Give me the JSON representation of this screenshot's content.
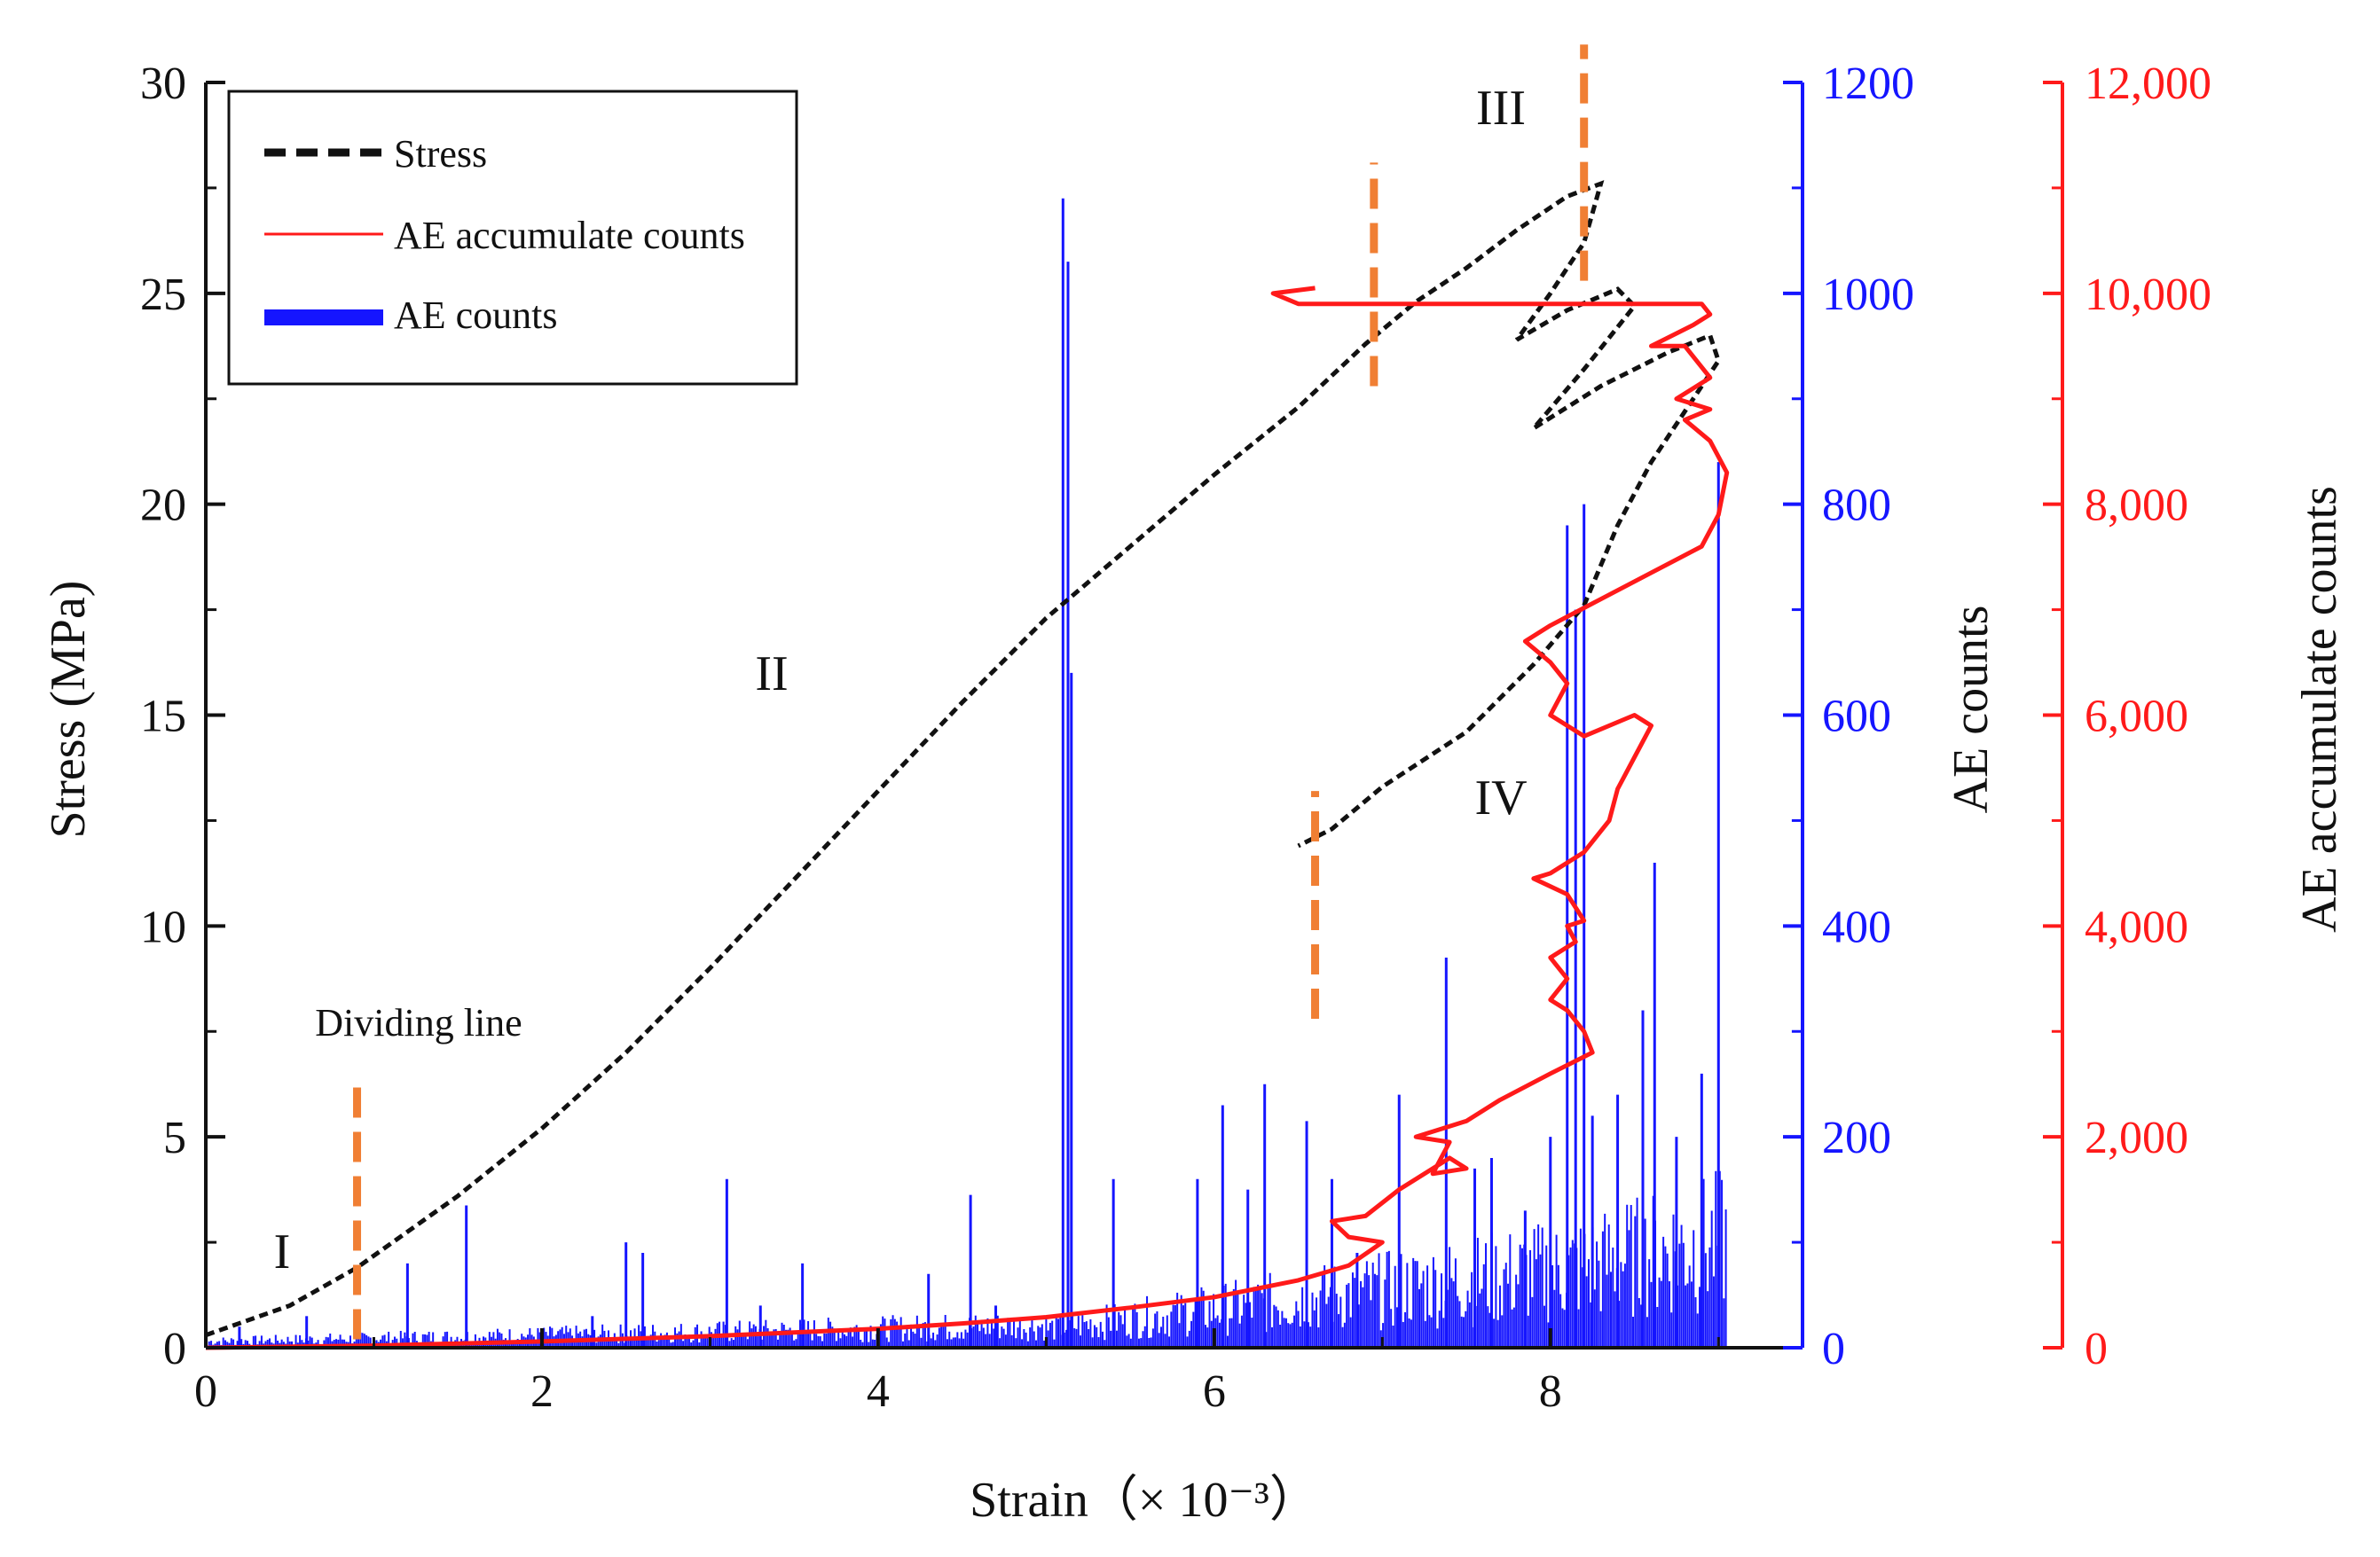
{
  "chart_data": {
    "type": "line",
    "title": "",
    "xlabel": "Strain（× 10⁻³）",
    "xlim": [
      0,
      9.5
    ],
    "xticks": [
      "0",
      "2",
      "4",
      "6",
      "8"
    ],
    "axes": {
      "stress": {
        "label": "Stress (MPa)",
        "ylim": [
          0,
          30
        ],
        "ticks": [
          "0",
          "5",
          "10",
          "15",
          "20",
          "25",
          "30"
        ],
        "color": "#111111"
      },
      "ae_counts": {
        "label": "AE counts",
        "ylim": [
          0,
          1200
        ],
        "ticks": [
          "0",
          "200",
          "400",
          "600",
          "800",
          "1000",
          "1200"
        ],
        "color": "#1515ff"
      },
      "ae_accumulate": {
        "label": "AE accumulate counts",
        "ylim": [
          0,
          12000
        ],
        "ticks": [
          "0",
          "2,000",
          "4,000",
          "6,000",
          "8,000",
          "10,000",
          "12,000"
        ],
        "color": "#ff1a1a"
      }
    },
    "legend": {
      "position": "top-left",
      "entries": [
        {
          "label": "Stress",
          "color": "#111111",
          "style": "dashed"
        },
        {
          "label": "AE accumulate counts",
          "color": "#ff1a1a",
          "style": "solid"
        },
        {
          "label": "AE counts",
          "color": "#1515ff",
          "style": "bar"
        }
      ]
    },
    "series": [
      {
        "name": "Stress",
        "axis": "stress",
        "color": "#111111",
        "points": [
          [
            0,
            0.3
          ],
          [
            0.5,
            1.0
          ],
          [
            0.9,
            1.9
          ],
          [
            1.5,
            3.6
          ],
          [
            2.0,
            5.2
          ],
          [
            2.5,
            7.0
          ],
          [
            3.0,
            9.0
          ],
          [
            3.5,
            11.1
          ],
          [
            4.0,
            13.2
          ],
          [
            4.5,
            15.3
          ],
          [
            5.0,
            17.3
          ],
          [
            5.5,
            19.0
          ],
          [
            6.0,
            20.7
          ],
          [
            6.5,
            22.3
          ],
          [
            6.9,
            23.8
          ],
          [
            7.2,
            24.8
          ],
          [
            7.5,
            25.6
          ],
          [
            7.8,
            26.5
          ],
          [
            8.1,
            27.3
          ],
          [
            8.3,
            27.6
          ],
          [
            8.2,
            26.2
          ],
          [
            8.0,
            25.0
          ],
          [
            7.8,
            23.9
          ],
          [
            8.1,
            24.6
          ],
          [
            8.4,
            25.1
          ],
          [
            8.5,
            24.7
          ],
          [
            8.2,
            23.2
          ],
          [
            7.9,
            21.8
          ],
          [
            8.3,
            22.8
          ],
          [
            8.7,
            23.6
          ],
          [
            8.95,
            24.0
          ],
          [
            9.0,
            23.4
          ],
          [
            8.8,
            22.2
          ],
          [
            8.6,
            21.0
          ],
          [
            8.4,
            19.5
          ],
          [
            8.2,
            17.6
          ],
          [
            7.9,
            16.2
          ],
          [
            7.5,
            14.6
          ],
          [
            7.0,
            13.3
          ],
          [
            6.7,
            12.3
          ],
          [
            6.5,
            11.9
          ]
        ]
      },
      {
        "name": "AE accumulate counts",
        "axis": "ae_accumulate",
        "color": "#ff1a1a",
        "points": [
          [
            0,
            0
          ],
          [
            1.0,
            20
          ],
          [
            2.0,
            60
          ],
          [
            3.0,
            110
          ],
          [
            4.0,
            180
          ],
          [
            4.5,
            230
          ],
          [
            5.0,
            290
          ],
          [
            5.5,
            380
          ],
          [
            6.0,
            480
          ],
          [
            6.5,
            640
          ],
          [
            6.8,
            780
          ],
          [
            7.0,
            1000
          ],
          [
            6.8,
            1050
          ],
          [
            6.7,
            1200
          ],
          [
            6.9,
            1250
          ],
          [
            7.1,
            1500
          ],
          [
            7.3,
            1700
          ],
          [
            7.4,
            1800
          ],
          [
            7.5,
            1700
          ],
          [
            7.3,
            1650
          ],
          [
            7.4,
            1950
          ],
          [
            7.2,
            2000
          ],
          [
            7.5,
            2150
          ],
          [
            7.7,
            2350
          ],
          [
            8.0,
            2600
          ],
          [
            8.25,
            2800
          ],
          [
            8.2,
            3000
          ],
          [
            8.1,
            3200
          ],
          [
            8.0,
            3300
          ],
          [
            8.1,
            3500
          ],
          [
            8.0,
            3700
          ],
          [
            8.15,
            3850
          ],
          [
            8.1,
            4000
          ],
          [
            8.2,
            4050
          ],
          [
            8.1,
            4300
          ],
          [
            7.9,
            4450
          ],
          [
            8.0,
            4500
          ],
          [
            8.2,
            4700
          ],
          [
            8.35,
            5000
          ],
          [
            8.4,
            5300
          ],
          [
            8.5,
            5600
          ],
          [
            8.6,
            5900
          ],
          [
            8.5,
            6000
          ],
          [
            8.2,
            5800
          ],
          [
            8.0,
            6000
          ],
          [
            8.1,
            6300
          ],
          [
            8.0,
            6500
          ],
          [
            7.85,
            6700
          ],
          [
            8.0,
            6850
          ],
          [
            8.3,
            7100
          ],
          [
            8.6,
            7350
          ],
          [
            8.9,
            7600
          ],
          [
            9.0,
            7900
          ],
          [
            9.05,
            8300
          ],
          [
            8.95,
            8600
          ],
          [
            8.8,
            8800
          ],
          [
            8.95,
            8900
          ],
          [
            8.75,
            9000
          ],
          [
            8.95,
            9200
          ],
          [
            8.8,
            9500
          ],
          [
            8.6,
            9500
          ],
          [
            8.85,
            9700
          ],
          [
            8.95,
            9800
          ],
          [
            8.9,
            9900
          ],
          [
            6.5,
            9900
          ],
          [
            6.35,
            10000
          ],
          [
            6.6,
            10050
          ]
        ]
      },
      {
        "name": "AE counts",
        "axis": "ae_counts",
        "color": "#1515ff",
        "type": "bar",
        "spikes": [
          [
            0.2,
            20
          ],
          [
            0.6,
            30
          ],
          [
            1.2,
            80
          ],
          [
            1.55,
            135
          ],
          [
            2.3,
            30
          ],
          [
            2.5,
            100
          ],
          [
            2.6,
            90
          ],
          [
            3.1,
            160
          ],
          [
            3.3,
            40
          ],
          [
            3.55,
            80
          ],
          [
            4.3,
            70
          ],
          [
            4.55,
            145
          ],
          [
            4.7,
            40
          ],
          [
            5.1,
            1090
          ],
          [
            5.13,
            1030
          ],
          [
            5.15,
            640
          ],
          [
            5.4,
            160
          ],
          [
            5.9,
            160
          ],
          [
            6.05,
            230
          ],
          [
            6.2,
            150
          ],
          [
            6.3,
            250
          ],
          [
            6.55,
            215
          ],
          [
            6.7,
            160
          ],
          [
            6.85,
            90
          ],
          [
            7.1,
            240
          ],
          [
            7.38,
            370
          ],
          [
            7.55,
            170
          ],
          [
            7.65,
            180
          ],
          [
            7.85,
            130
          ],
          [
            8.0,
            200
          ],
          [
            8.1,
            780
          ],
          [
            8.15,
            700
          ],
          [
            8.2,
            800
          ],
          [
            8.25,
            220
          ],
          [
            8.4,
            240
          ],
          [
            8.55,
            320
          ],
          [
            8.62,
            460
          ],
          [
            8.75,
            200
          ],
          [
            8.9,
            260
          ],
          [
            9.0,
            840
          ]
        ]
      }
    ],
    "vlines": [
      {
        "x": 0.9,
        "y0": 0.2,
        "y1": 6.4
      },
      {
        "x": 6.6,
        "y0": 7.8,
        "y1": 13.2
      },
      {
        "x": 6.95,
        "y0": 22.8,
        "y1": 28.1
      },
      {
        "x": 8.2,
        "y0": 25.3,
        "y1": 30.9
      }
    ],
    "annotations": {
      "stage_1": "I",
      "stage_2": "II",
      "stage_3": "III",
      "stage_4": "IV",
      "dividing_line": "Dividing line"
    }
  }
}
